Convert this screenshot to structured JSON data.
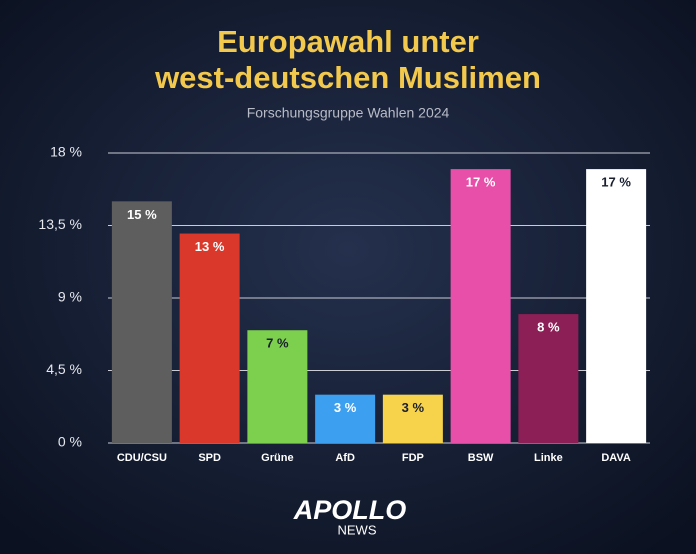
{
  "chart_data": {
    "type": "bar",
    "title": [
      "Europawahl unter",
      "west-deutschen Muslimen"
    ],
    "subtitle": "Forschungsgruppe Wahlen 2024",
    "categories": [
      "CDU/CSU",
      "SPD",
      "Grüne",
      "AfD",
      "FDP",
      "BSW",
      "Linke",
      "DAVA"
    ],
    "values": [
      15,
      13,
      7,
      3,
      3,
      17,
      8,
      17
    ],
    "value_labels": [
      "15 %",
      "13 %",
      "7 %",
      "3 %",
      "3 %",
      "17 %",
      "8 %",
      "17 %"
    ],
    "colors": [
      "#5e5e5e",
      "#d9382b",
      "#7dcf4e",
      "#3d9ff0",
      "#f6d34b",
      "#e84fa8",
      "#8c1f55",
      "#ffffff"
    ],
    "ylim": [
      0,
      18
    ],
    "yticks": [
      {
        "value": 0,
        "label": "0 %"
      },
      {
        "value": 4.5,
        "label": "4,5 %"
      },
      {
        "value": 9,
        "label": "9 %"
      },
      {
        "value": 13.5,
        "label": "13,5 %"
      },
      {
        "value": 18,
        "label": "18 %"
      }
    ],
    "grid": true
  },
  "branding": {
    "name": "APOLLO",
    "sub": "NEWS"
  }
}
